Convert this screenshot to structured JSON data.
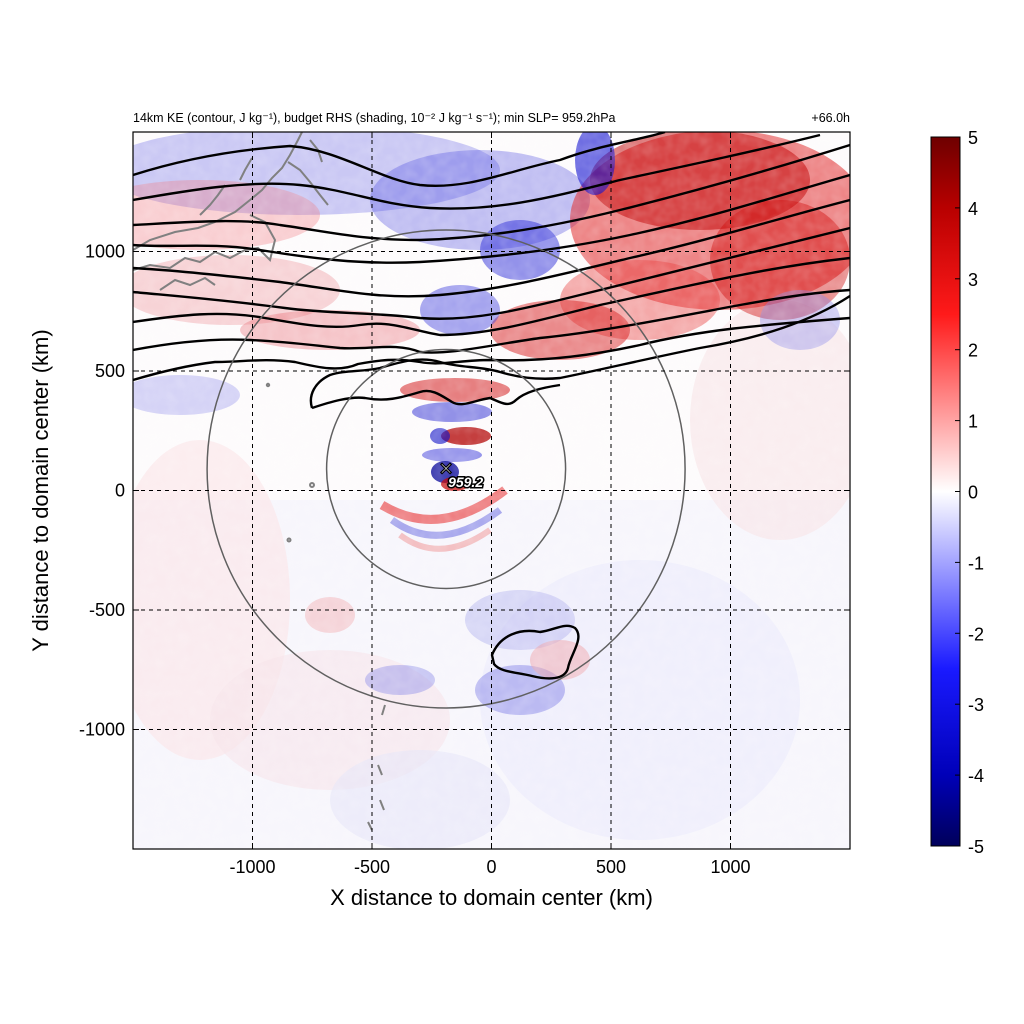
{
  "chart_data": {
    "type": "heatmap",
    "title_left": "14km KE (contour, J kg⁻¹), budget RHS (shading, 10⁻² J kg⁻¹ s⁻¹); min SLP= 959.2hPa",
    "title_right": "+66.0h",
    "xlabel": "X distance to domain center (km)",
    "ylabel": "Y distance to domain center (km)",
    "xlim": [
      -1500,
      1500
    ],
    "ylim": [
      -1500,
      1500
    ],
    "x_ticks": [
      -1000,
      -500,
      0,
      500,
      1000
    ],
    "y_ticks": [
      -1000,
      -500,
      0,
      500,
      1000
    ],
    "x_tick_labels": [
      "-1000",
      "-500",
      "0",
      "500",
      "1000"
    ],
    "y_tick_labels": [
      "-1000",
      "-500",
      "0",
      "500",
      "1000"
    ],
    "grid": "dashed",
    "colorbar": {
      "min": -5,
      "max": 5,
      "ticks": [
        5,
        4,
        3,
        2,
        1,
        0,
        -1,
        -2,
        -3,
        -4,
        -5
      ],
      "tick_labels": [
        "5",
        "4",
        "3",
        "2",
        "1",
        "0",
        "-1",
        "-2",
        "-3",
        "-4",
        "-5"
      ],
      "colors": [
        "#00005a",
        "#0000ff",
        "#ffffff",
        "#ff0000",
        "#6e0000"
      ]
    },
    "storm_center": {
      "x": -190,
      "y": 90,
      "label": "959.2"
    },
    "range_rings": [
      {
        "x": -190,
        "y": 90,
        "radius_km": 500
      },
      {
        "x": -190,
        "y": 90,
        "radius_km": 1000
      }
    ],
    "colors": {
      "contour": "#000000",
      "coastline": "#808080",
      "ring": "#606060",
      "positive": "#d00000",
      "negative": "#1010d0"
    }
  }
}
